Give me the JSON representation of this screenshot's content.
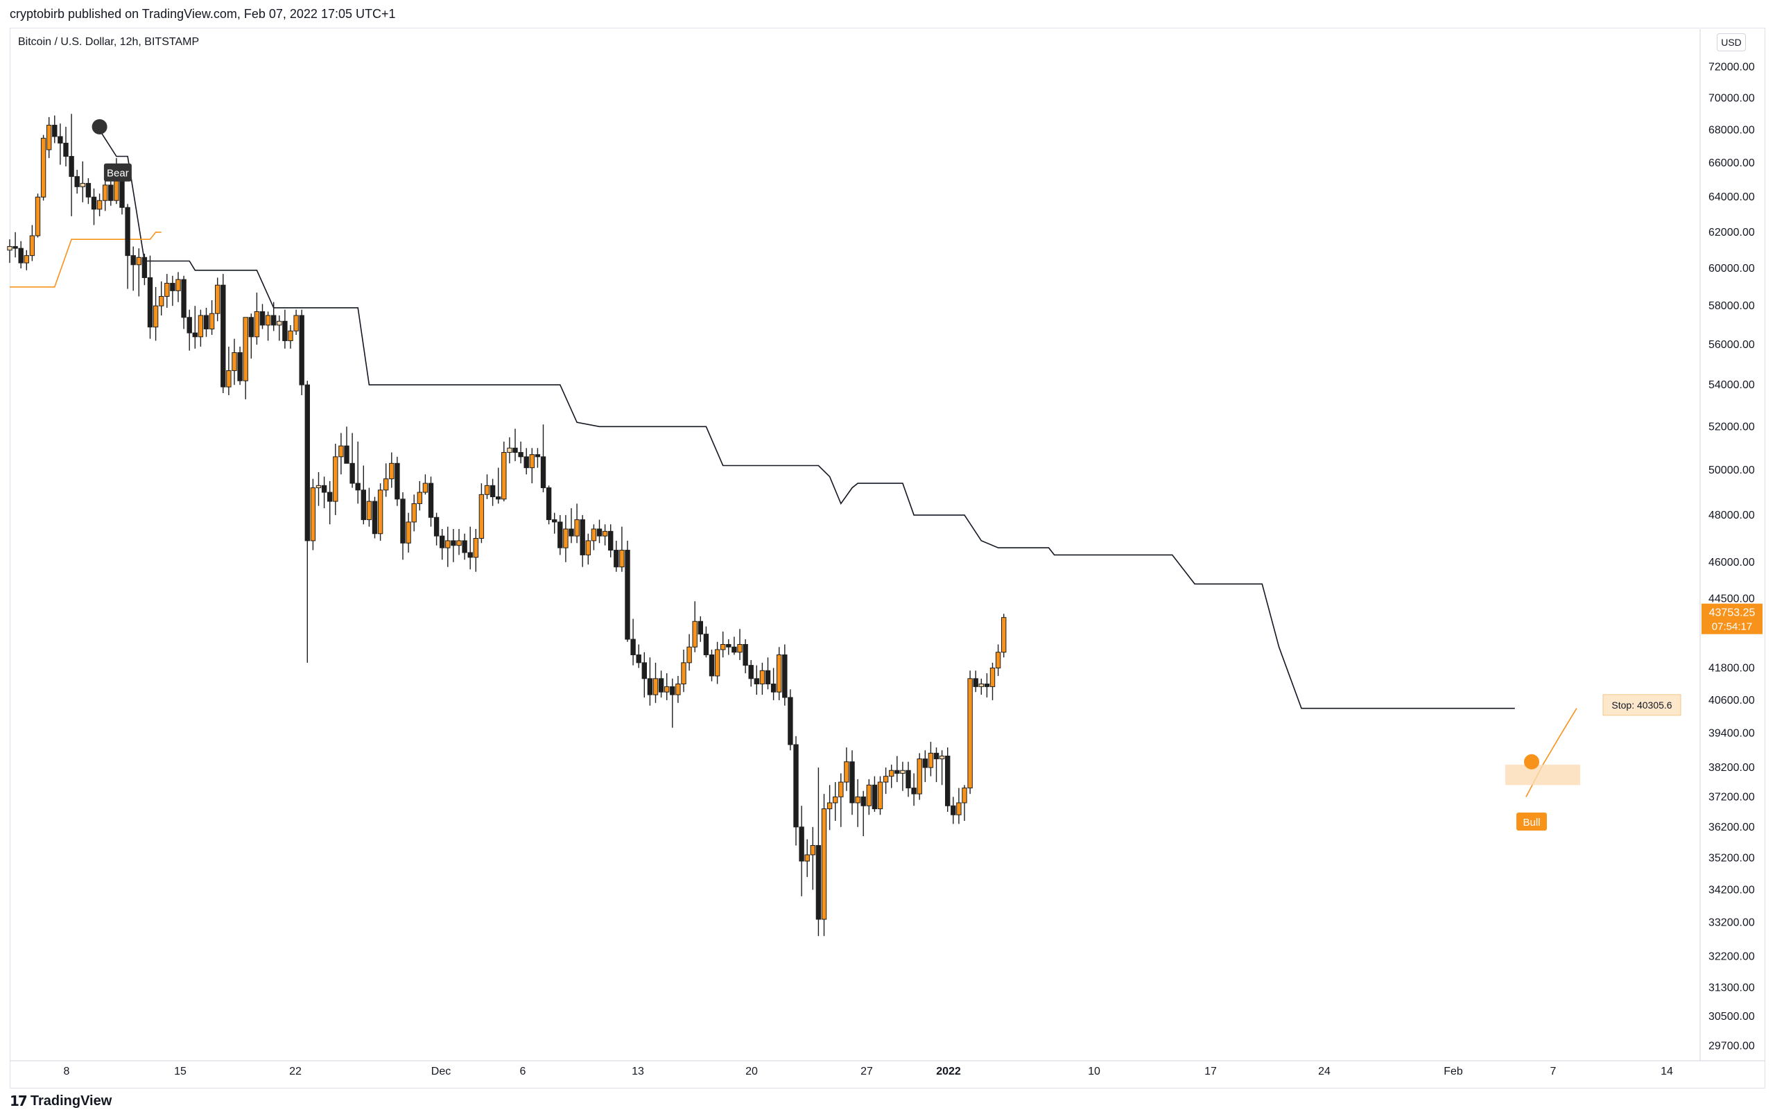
{
  "header": {
    "publisher_line": "cryptobirb published on TradingView.com, Feb 07, 2022 17:05 UTC+1"
  },
  "chart_title": "Bitcoin / U.S. Dollar, 12h, BITSTAMP",
  "currency": "USD",
  "footer": {
    "brand": "TradingView",
    "logo": "17"
  },
  "colors": {
    "bull": "#f7931a",
    "bull_light": "#f5d4a5",
    "bear": "#1e1e1e",
    "neutral": "#9e9e9e",
    "stop_line": "#131722",
    "orange_line": "#f7931a",
    "highlight_box": "#fbdcb5",
    "price_label_bg": "#f7931a"
  },
  "chart_data": {
    "type": "candlestick",
    "title": "Bitcoin / U.S. Dollar, 12h, BITSTAMP",
    "y_axis": {
      "ticks": [
        72000,
        70000,
        68000,
        66000,
        64000,
        62000,
        60000,
        58000,
        56000,
        54000,
        52000,
        50000,
        48000,
        46000,
        44500,
        41800,
        40600,
        39400,
        38200,
        37200,
        36200,
        35200,
        34200,
        33200,
        32200,
        31300,
        30500,
        29700
      ],
      "tick_labels": [
        "72000.00",
        "70000.00",
        "68000.00",
        "66000.00",
        "64000.00",
        "62000.00",
        "60000.00",
        "58000.00",
        "56000.00",
        "54000.00",
        "52000.00",
        "50000.00",
        "48000.00",
        "46000.00",
        "44500.00",
        "41800.00",
        "40600.00",
        "39400.00",
        "38200.00",
        "37200.00",
        "36200.00",
        "35200.00",
        "34200.00",
        "33200.00",
        "32200.00",
        "31300.00",
        "30500.00",
        "29700.00"
      ],
      "scale": "log",
      "range": [
        29300,
        74500
      ]
    },
    "x_axis": {
      "tick_labels": [
        "8",
        "15",
        "22",
        "Dec",
        "6",
        "13",
        "20",
        "27",
        "2022",
        "10",
        "17",
        "24",
        "Feb",
        "7",
        "14"
      ],
      "bold_labels": [
        "2022"
      ]
    },
    "last_price": {
      "value": "43753.25",
      "countdown": "07:54:17"
    },
    "stop_label": "Stop: 40305.6",
    "signals": [
      {
        "label": "Bear",
        "type": "sell"
      },
      {
        "label": "Bull",
        "type": "buy"
      }
    ],
    "candles": [
      [
        61000,
        61600,
        60300,
        61200
      ],
      [
        61200,
        62000,
        60600,
        61100
      ],
      [
        61100,
        61500,
        60000,
        60300
      ],
      [
        60300,
        61000,
        59900,
        60700
      ],
      [
        60700,
        62400,
        60400,
        61800
      ],
      [
        61800,
        64200,
        61700,
        64000
      ],
      [
        64000,
        67700,
        63800,
        67500
      ],
      [
        66800,
        68800,
        66300,
        68300
      ],
      [
        68300,
        68900,
        67200,
        67600
      ],
      [
        67600,
        68400,
        65900,
        67200
      ],
      [
        67200,
        68200,
        65800,
        66400
      ],
      [
        66400,
        69000,
        62900,
        65200
      ],
      [
        65200,
        65600,
        64200,
        64600
      ],
      [
        64600,
        66100,
        63700,
        64800
      ],
      [
        64800,
        65100,
        63600,
        64000
      ],
      [
        64000,
        64500,
        62400,
        63300
      ],
      [
        63300,
        64200,
        62900,
        63800
      ],
      [
        63800,
        65200,
        63200,
        64700
      ],
      [
        64700,
        65800,
        63500,
        63800
      ],
      [
        63800,
        66300,
        63600,
        65600
      ],
      [
        65600,
        65900,
        63000,
        63400
      ],
      [
        63400,
        63600,
        58900,
        60700
      ],
      [
        60700,
        61200,
        58800,
        60200
      ],
      [
        60200,
        61100,
        58500,
        60600
      ],
      [
        60600,
        60800,
        59100,
        59500
      ],
      [
        59500,
        60700,
        56300,
        56900
      ],
      [
        56900,
        59000,
        56200,
        58000
      ],
      [
        58000,
        59300,
        57500,
        58500
      ],
      [
        58500,
        59700,
        57900,
        59200
      ],
      [
        59200,
        59600,
        58000,
        58800
      ],
      [
        58800,
        59800,
        58200,
        59400
      ],
      [
        59400,
        59600,
        56800,
        57400
      ],
      [
        57400,
        57800,
        55700,
        56600
      ],
      [
        56600,
        58000,
        55800,
        56400
      ],
      [
        56400,
        57800,
        55900,
        57500
      ],
      [
        57500,
        57900,
        56400,
        56800
      ],
      [
        56800,
        58300,
        56500,
        57600
      ],
      [
        57600,
        59500,
        57200,
        59100
      ],
      [
        59100,
        59700,
        53600,
        53900
      ],
      [
        53900,
        55900,
        53500,
        54700
      ],
      [
        54700,
        56300,
        54000,
        55600
      ],
      [
        55600,
        55900,
        54000,
        54200
      ],
      [
        54200,
        57400,
        53300,
        57400
      ],
      [
        57400,
        57600,
        55300,
        56400
      ],
      [
        56400,
        58700,
        56000,
        57700
      ],
      [
        57700,
        58100,
        56800,
        57000
      ],
      [
        57000,
        57700,
        56200,
        57500
      ],
      [
        57500,
        58200,
        56700,
        57000
      ],
      [
        57000,
        57500,
        56200,
        57200
      ],
      [
        57200,
        57800,
        55800,
        56200
      ],
      [
        56200,
        57000,
        55800,
        56700
      ],
      [
        56700,
        57800,
        56500,
        57500
      ],
      [
        57500,
        57800,
        53500,
        54000
      ],
      [
        54000,
        54200,
        42000,
        46900
      ],
      [
        46900,
        49600,
        46500,
        49200
      ],
      [
        49200,
        49900,
        48400,
        49300
      ],
      [
        49300,
        49700,
        48300,
        49000
      ],
      [
        49000,
        49500,
        47600,
        48600
      ],
      [
        48600,
        51200,
        48000,
        50600
      ],
      [
        50600,
        51700,
        49800,
        51100
      ],
      [
        51100,
        52000,
        50300,
        50300
      ],
      [
        50300,
        51700,
        49200,
        49400
      ],
      [
        49400,
        51300,
        48500,
        49100
      ],
      [
        49100,
        50200,
        47600,
        47800
      ],
      [
        47800,
        49200,
        47500,
        48600
      ],
      [
        48600,
        48800,
        47000,
        47200
      ],
      [
        47200,
        49400,
        46900,
        49100
      ],
      [
        49100,
        50300,
        48800,
        49600
      ],
      [
        49600,
        50800,
        49200,
        50300
      ],
      [
        50300,
        50600,
        48400,
        48700
      ],
      [
        48700,
        49000,
        46100,
        46800
      ],
      [
        46800,
        48100,
        46400,
        47700
      ],
      [
        47700,
        48900,
        47300,
        48500
      ],
      [
        48500,
        49500,
        48200,
        49000
      ],
      [
        49000,
        49800,
        48900,
        49400
      ],
      [
        49400,
        49700,
        47500,
        47900
      ],
      [
        47900,
        48100,
        46700,
        47100
      ],
      [
        47100,
        47400,
        46100,
        46600
      ],
      [
        46600,
        47500,
        45800,
        46900
      ],
      [
        46900,
        47400,
        46000,
        46700
      ],
      [
        46700,
        47400,
        46300,
        46900
      ],
      [
        46900,
        47200,
        46100,
        46400
      ],
      [
        46400,
        47500,
        45700,
        46200
      ],
      [
        46200,
        47400,
        45600,
        47000
      ],
      [
        47000,
        49400,
        46800,
        48900
      ],
      [
        48900,
        49800,
        48700,
        49300
      ],
      [
        49300,
        49600,
        48400,
        48800
      ],
      [
        48800,
        50100,
        48500,
        48700
      ],
      [
        48700,
        51300,
        48600,
        50800
      ],
      [
        50800,
        51500,
        50300,
        51000
      ],
      [
        51000,
        51900,
        50400,
        50800
      ],
      [
        50800,
        51300,
        50300,
        50600
      ],
      [
        50600,
        51000,
        49800,
        50100
      ],
      [
        50100,
        51000,
        49400,
        50700
      ],
      [
        50700,
        51000,
        50100,
        50600
      ],
      [
        50600,
        52100,
        49000,
        49200
      ],
      [
        49200,
        49300,
        47600,
        47800
      ],
      [
        47800,
        48100,
        47200,
        47700
      ],
      [
        47700,
        48000,
        46300,
        46600
      ],
      [
        46600,
        48000,
        46000,
        47400
      ],
      [
        47400,
        48300,
        46800,
        47100
      ],
      [
        47100,
        48500,
        46800,
        47800
      ],
      [
        47800,
        48000,
        45800,
        46300
      ],
      [
        46300,
        47200,
        45900,
        46900
      ],
      [
        46900,
        47600,
        46500,
        47400
      ],
      [
        47400,
        47800,
        46800,
        47100
      ],
      [
        47100,
        47600,
        46700,
        47300
      ],
      [
        47300,
        47600,
        46200,
        46500
      ],
      [
        46500,
        46900,
        45600,
        45800
      ],
      [
        45800,
        47500,
        45600,
        46500
      ],
      [
        46500,
        46900,
        42800,
        42900
      ],
      [
        42900,
        43700,
        41900,
        42300
      ],
      [
        42300,
        42700,
        41800,
        42000
      ],
      [
        42000,
        42400,
        40700,
        41400
      ],
      [
        41400,
        42200,
        40400,
        40800
      ],
      [
        40800,
        42000,
        40500,
        41400
      ],
      [
        41400,
        41700,
        40700,
        40900
      ],
      [
        40900,
        41600,
        40600,
        41100
      ],
      [
        41100,
        41400,
        39600,
        40800
      ],
      [
        40800,
        41500,
        40500,
        41200
      ],
      [
        41200,
        42500,
        40900,
        42000
      ],
      [
        42000,
        43100,
        41700,
        42600
      ],
      [
        42600,
        44400,
        42400,
        43600
      ],
      [
        43600,
        43800,
        42800,
        43100
      ],
      [
        43100,
        43400,
        42200,
        42300
      ],
      [
        42300,
        42500,
        41300,
        41500
      ],
      [
        41500,
        42800,
        41200,
        42500
      ],
      [
        42500,
        43200,
        42200,
        42700
      ],
      [
        42700,
        42900,
        42300,
        42600
      ],
      [
        42600,
        43000,
        42300,
        42400
      ],
      [
        42400,
        43300,
        42100,
        42700
      ],
      [
        42700,
        42900,
        41600,
        41900
      ],
      [
        41900,
        42100,
        41100,
        41400
      ],
      [
        41400,
        41900,
        40800,
        41200
      ],
      [
        41200,
        42000,
        40800,
        41700
      ],
      [
        41700,
        42200,
        41000,
        41200
      ],
      [
        41200,
        41800,
        40600,
        40900
      ],
      [
        40900,
        42600,
        40600,
        42300
      ],
      [
        42300,
        42700,
        40400,
        40700
      ],
      [
        40700,
        41000,
        38800,
        39000
      ],
      [
        39000,
        39300,
        35600,
        36200
      ],
      [
        36200,
        36900,
        34000,
        35100
      ],
      [
        35100,
        35800,
        34600,
        35300
      ],
      [
        35300,
        36200,
        34200,
        35600
      ],
      [
        35600,
        38200,
        32800,
        33300
      ],
      [
        33300,
        37300,
        32800,
        36800
      ],
      [
        36800,
        37600,
        36100,
        37000
      ],
      [
        37000,
        37700,
        36400,
        37200
      ],
      [
        37200,
        38000,
        36200,
        37700
      ],
      [
        37700,
        38900,
        37400,
        38400
      ],
      [
        38400,
        38800,
        36600,
        37000
      ],
      [
        37000,
        37800,
        36200,
        37200
      ],
      [
        37200,
        37400,
        35900,
        36900
      ],
      [
        36900,
        37800,
        36600,
        37600
      ],
      [
        37600,
        37900,
        36700,
        36800
      ],
      [
        36800,
        37900,
        36600,
        37700
      ],
      [
        37700,
        38200,
        37300,
        37900
      ],
      [
        37900,
        38300,
        37500,
        38100
      ],
      [
        38100,
        38600,
        37700,
        38000
      ],
      [
        38000,
        38400,
        37400,
        38100
      ],
      [
        38100,
        38400,
        37200,
        37500
      ],
      [
        37500,
        38000,
        36900,
        37300
      ],
      [
        37300,
        38700,
        37100,
        38500
      ],
      [
        38500,
        38800,
        37700,
        38200
      ],
      [
        38200,
        39100,
        37900,
        38700
      ],
      [
        38700,
        38900,
        37700,
        38500
      ],
      [
        38500,
        38800,
        37600,
        38600
      ],
      [
        38600,
        38900,
        36700,
        36900
      ],
      [
        36900,
        37200,
        36300,
        36600
      ],
      [
        36600,
        37500,
        36300,
        37000
      ],
      [
        37000,
        37600,
        36400,
        37500
      ],
      [
        37500,
        41700,
        37300,
        41400
      ],
      [
        41400,
        41700,
        40900,
        41100
      ],
      [
        41100,
        41400,
        40800,
        41200
      ],
      [
        41200,
        41600,
        40700,
        41100
      ],
      [
        41100,
        42000,
        40600,
        41800
      ],
      [
        41800,
        42700,
        41500,
        42400
      ],
      [
        42400,
        43900,
        42200,
        43753
      ]
    ],
    "stop_line_bear": [
      [
        16,
        68000
      ],
      [
        19,
        66400
      ],
      [
        21,
        66400
      ],
      [
        24,
        60400
      ],
      [
        32,
        60400
      ],
      [
        33,
        59900
      ],
      [
        44,
        59900
      ],
      [
        47,
        57900
      ],
      [
        62,
        57900
      ],
      [
        64,
        54000
      ],
      [
        98,
        54000
      ],
      [
        101,
        52200
      ],
      [
        105,
        52000
      ],
      [
        124,
        52000
      ],
      [
        127,
        50200
      ],
      [
        144,
        50200
      ],
      [
        146,
        49700
      ],
      [
        148,
        48500
      ],
      [
        150,
        49200
      ],
      [
        151,
        49400
      ],
      [
        159,
        49400
      ],
      [
        161,
        48000
      ],
      [
        170,
        48000
      ],
      [
        173,
        46900
      ],
      [
        176,
        46600
      ],
      [
        185,
        46600
      ],
      [
        186,
        46300
      ],
      [
        196,
        46300
      ],
      [
        207,
        46300
      ],
      [
        211,
        45100
      ],
      [
        223,
        45100
      ],
      [
        226,
        42600
      ],
      [
        230,
        40300
      ],
      [
        268,
        40300
      ]
    ],
    "stop_line_bull_pre": [
      [
        0,
        59000
      ],
      [
        8,
        59000
      ],
      [
        11,
        61600
      ],
      [
        25,
        61600
      ],
      [
        26,
        62000
      ],
      [
        27,
        62000
      ]
    ],
    "stop_line_bull_post": [
      [
        270,
        37200
      ],
      [
        273,
        38300
      ],
      [
        276,
        39300
      ],
      [
        279,
        40300
      ]
    ]
  }
}
